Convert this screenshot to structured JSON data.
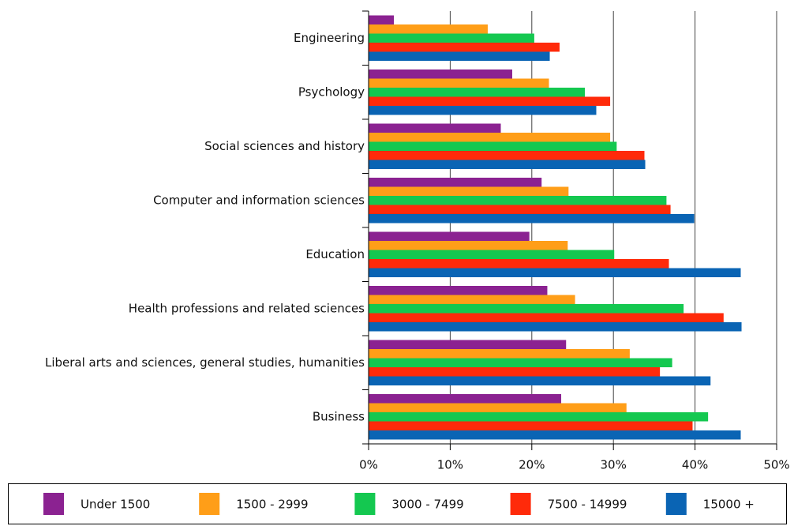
{
  "chart_data": {
    "type": "hbar",
    "categories": [
      "Engineering",
      "Psychology",
      "Social sciences and history",
      "Computer and information sciences",
      "Education",
      "Health professions and related sciences",
      "Liberal arts and sciences, general studies, humanities",
      "Business"
    ],
    "series": [
      {
        "name": "Under 1500",
        "color": "#8b2291",
        "values": [
          3.1,
          17.6,
          16.2,
          21.2,
          19.7,
          21.9,
          24.2,
          23.6
        ]
      },
      {
        "name": "1500 - 2999",
        "color": "#ff9e18",
        "values": [
          14.6,
          22.1,
          29.6,
          24.5,
          24.4,
          25.3,
          32.0,
          31.6
        ]
      },
      {
        "name": "3000 - 7499",
        "color": "#14c850",
        "values": [
          20.3,
          26.5,
          30.4,
          36.5,
          30.1,
          38.6,
          37.2,
          41.6
        ]
      },
      {
        "name": "7500 - 14999",
        "color": "#ff2a0a",
        "values": [
          23.4,
          29.6,
          33.8,
          37.0,
          36.8,
          43.5,
          35.7,
          39.7
        ]
      },
      {
        "name": "15000 +",
        "color": "#0a64b4",
        "values": [
          22.2,
          27.9,
          33.9,
          39.9,
          45.6,
          45.7,
          41.9,
          45.6
        ]
      }
    ],
    "xlim": [
      0,
      50
    ],
    "xticks": [
      {
        "value": 0,
        "label": "0%"
      },
      {
        "value": 10,
        "label": "10%"
      },
      {
        "value": 20,
        "label": "20%"
      },
      {
        "value": 30,
        "label": "30%"
      },
      {
        "value": 40,
        "label": "40%"
      },
      {
        "value": 50,
        "label": "50%"
      }
    ],
    "grid": true,
    "legend": "bottom"
  }
}
